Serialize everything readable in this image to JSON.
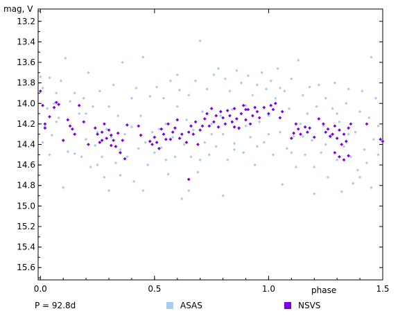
{
  "chart_data": {
    "type": "scatter",
    "ylabel": "mag, V",
    "xlabel": "phase",
    "period_label": "P = 92.8d",
    "y_inverted": true,
    "xlim": [
      -0.01,
      1.5
    ],
    "ylim": [
      15.72,
      13.08
    ],
    "x_ticks": [
      0.0,
      0.5,
      1.0,
      1.5
    ],
    "x_tick_labels": [
      "0.0",
      "0.5",
      "1.0",
      "1.5"
    ],
    "y_ticks": [
      13.2,
      13.4,
      13.6,
      13.8,
      14.0,
      14.2,
      14.4,
      14.6,
      14.8,
      15.0,
      15.2,
      15.4,
      15.6
    ],
    "y_tick_labels": [
      "13.2",
      "13.4",
      "13.6",
      "13.8",
      "14.0",
      "14.2",
      "14.4",
      "14.6",
      "14.8",
      "15.0",
      "15.2",
      "15.4",
      "15.6"
    ],
    "grid": false,
    "legend_position": "bottom",
    "series": [
      {
        "name": "ASAS",
        "color": "#a8cdf0",
        "points": [
          [
            0.0,
            13.74
          ],
          [
            0.01,
            13.85
          ],
          [
            0.02,
            14.22
          ],
          [
            0.03,
            14.05
          ],
          [
            0.04,
            13.75
          ],
          [
            0.05,
            14.31
          ],
          [
            0.06,
            14.0
          ],
          [
            0.07,
            13.9
          ],
          [
            0.08,
            14.14
          ],
          [
            0.09,
            13.78
          ],
          [
            0.1,
            14.36
          ],
          [
            0.11,
            13.56
          ],
          [
            0.12,
            14.47
          ],
          [
            0.13,
            13.98
          ],
          [
            0.14,
            14.25
          ],
          [
            0.15,
            14.49
          ],
          [
            0.17,
            14.1
          ],
          [
            0.18,
            14.52
          ],
          [
            0.19,
            13.95
          ],
          [
            0.2,
            14.35
          ],
          [
            0.21,
            13.7
          ],
          [
            0.22,
            14.62
          ],
          [
            0.23,
            14.03
          ],
          [
            0.24,
            14.41
          ],
          [
            0.25,
            14.28
          ],
          [
            0.26,
            13.88
          ],
          [
            0.27,
            14.52
          ],
          [
            0.28,
            14.72
          ],
          [
            0.29,
            14.25
          ],
          [
            0.3,
            14.03
          ],
          [
            0.31,
            14.33
          ],
          [
            0.32,
            13.82
          ],
          [
            0.33,
            14.58
          ],
          [
            0.34,
            14.12
          ],
          [
            0.35,
            14.45
          ],
          [
            0.36,
            13.6
          ],
          [
            0.37,
            14.3
          ],
          [
            0.38,
            14.52
          ],
          [
            0.4,
            14.23
          ],
          [
            0.41,
            14.76
          ],
          [
            0.42,
            13.85
          ],
          [
            0.43,
            14.44
          ],
          [
            0.44,
            14.12
          ],
          [
            0.45,
            13.55
          ],
          [
            0.46,
            14.38
          ],
          [
            0.47,
            14.6
          ],
          [
            0.48,
            13.93
          ],
          [
            0.49,
            14.28
          ],
          [
            0.5,
            14.48
          ],
          [
            0.51,
            13.84
          ],
          [
            0.52,
            14.25
          ],
          [
            0.53,
            14.43
          ],
          [
            0.54,
            13.95
          ],
          [
            0.55,
            14.2
          ],
          [
            0.56,
            14.69
          ],
          [
            0.57,
            13.78
          ],
          [
            0.58,
            14.33
          ],
          [
            0.59,
            14.52
          ],
          [
            0.6,
            14.03
          ],
          [
            0.61,
            13.87
          ],
          [
            0.62,
            14.93
          ],
          [
            0.63,
            14.4
          ],
          [
            0.64,
            14.16
          ],
          [
            0.65,
            13.92
          ],
          [
            0.66,
            14.52
          ],
          [
            0.67,
            14.26
          ],
          [
            0.68,
            13.78
          ],
          [
            0.69,
            14.67
          ],
          [
            0.7,
            13.39
          ],
          [
            0.71,
            14.08
          ],
          [
            0.72,
            14.38
          ],
          [
            0.73,
            13.86
          ],
          [
            0.74,
            14.5
          ],
          [
            0.75,
            14.2
          ],
          [
            0.76,
            13.72
          ],
          [
            0.77,
            14.42
          ],
          [
            0.78,
            13.66
          ],
          [
            0.79,
            14.12
          ],
          [
            0.8,
            14.3
          ],
          [
            0.81,
            13.76
          ],
          [
            0.82,
            14.55
          ],
          [
            0.83,
            13.88
          ],
          [
            0.84,
            14.06
          ],
          [
            0.85,
            14.39
          ],
          [
            0.86,
            13.68
          ],
          [
            0.87,
            14.25
          ],
          [
            0.88,
            13.8
          ],
          [
            0.89,
            14.48
          ],
          [
            0.9,
            14.02
          ],
          [
            0.91,
            13.73
          ],
          [
            0.92,
            14.33
          ],
          [
            0.93,
            13.92
          ],
          [
            0.94,
            14.6
          ],
          [
            0.95,
            13.82
          ],
          [
            0.96,
            14.18
          ],
          [
            0.97,
            13.7
          ],
          [
            0.98,
            14.38
          ],
          [
            0.99,
            13.86
          ],
          [
            1.0,
            14.12
          ],
          [
            1.01,
            13.78
          ],
          [
            1.02,
            14.5
          ],
          [
            1.03,
            13.95
          ],
          [
            1.04,
            13.66
          ],
          [
            1.05,
            14.28
          ],
          [
            1.06,
            14.79
          ],
          [
            1.07,
            13.88
          ],
          [
            1.08,
            14.44
          ],
          [
            1.09,
            14.05
          ],
          [
            1.1,
            13.76
          ],
          [
            1.11,
            14.32
          ],
          [
            1.12,
            14.62
          ],
          [
            1.13,
            13.58
          ],
          [
            1.14,
            14.2
          ],
          [
            1.15,
            13.92
          ],
          [
            1.16,
            14.5
          ],
          [
            1.17,
            14.1
          ],
          [
            1.18,
            13.84
          ],
          [
            1.19,
            14.36
          ],
          [
            1.2,
            14.62
          ],
          [
            1.21,
            14.03
          ],
          [
            1.22,
            13.82
          ],
          [
            1.23,
            14.48
          ],
          [
            1.24,
            14.22
          ],
          [
            1.25,
            13.95
          ],
          [
            1.26,
            14.72
          ],
          [
            1.27,
            14.33
          ],
          [
            1.28,
            14.05
          ],
          [
            1.29,
            13.8
          ],
          [
            1.3,
            14.55
          ],
          [
            1.31,
            14.18
          ],
          [
            1.32,
            14.86
          ],
          [
            1.33,
            14.42
          ],
          [
            1.34,
            14.0
          ],
          [
            1.35,
            13.86
          ],
          [
            1.36,
            14.52
          ],
          [
            1.37,
            14.78
          ],
          [
            1.38,
            14.28
          ],
          [
            1.39,
            14.65
          ],
          [
            1.4,
            14.08
          ],
          [
            1.41,
            13.88
          ],
          [
            1.42,
            14.45
          ],
          [
            1.43,
            14.58
          ],
          [
            1.44,
            14.14
          ],
          [
            1.45,
            13.55
          ],
          [
            1.46,
            14.35
          ],
          [
            1.47,
            13.95
          ],
          [
            1.48,
            14.5
          ],
          [
            0.01,
            14.38
          ],
          [
            0.04,
            14.5
          ],
          [
            0.07,
            14.18
          ],
          [
            0.1,
            14.82
          ],
          [
            0.15,
            13.9
          ],
          [
            0.2,
            14.1
          ],
          [
            0.25,
            14.6
          ],
          [
            0.3,
            14.85
          ],
          [
            0.35,
            14.7
          ],
          [
            0.4,
            13.95
          ],
          [
            0.45,
            14.85
          ],
          [
            0.55,
            14.55
          ],
          [
            0.6,
            13.72
          ],
          [
            0.65,
            14.85
          ],
          [
            0.7,
            14.55
          ],
          [
            0.75,
            14.3
          ],
          [
            0.8,
            14.9
          ],
          [
            0.85,
            14.45
          ],
          [
            0.9,
            14.22
          ],
          [
            0.95,
            14.42
          ],
          [
            1.0,
            14.3
          ],
          [
            1.05,
            13.85
          ],
          [
            1.1,
            14.48
          ],
          [
            1.15,
            14.32
          ],
          [
            1.2,
            14.88
          ],
          [
            1.25,
            14.4
          ],
          [
            1.3,
            14.1
          ],
          [
            1.35,
            14.3
          ],
          [
            1.4,
            14.72
          ],
          [
            1.45,
            14.82
          ],
          [
            1.48,
            14.22
          ]
        ]
      },
      {
        "name": "NSVS",
        "color": "#7a00e6",
        "points": [
          [
            0.0,
            13.88
          ],
          [
            0.01,
            14.02
          ],
          [
            0.02,
            14.2
          ],
          [
            0.04,
            14.13
          ],
          [
            0.06,
            14.04
          ],
          [
            0.07,
            13.99
          ],
          [
            0.08,
            14.01
          ],
          [
            0.1,
            14.36
          ],
          [
            0.12,
            14.16
          ],
          [
            0.13,
            14.22
          ],
          [
            0.15,
            14.3
          ],
          [
            0.17,
            14.02
          ],
          [
            0.19,
            14.18
          ],
          [
            0.21,
            14.4
          ],
          [
            0.24,
            14.24
          ],
          [
            0.25,
            14.3
          ],
          [
            0.26,
            14.38
          ],
          [
            0.27,
            14.28
          ],
          [
            0.28,
            14.2
          ],
          [
            0.29,
            14.34
          ],
          [
            0.3,
            14.26
          ],
          [
            0.31,
            14.31
          ],
          [
            0.32,
            14.36
          ],
          [
            0.33,
            14.42
          ],
          [
            0.34,
            14.29
          ],
          [
            0.35,
            14.48
          ],
          [
            0.36,
            14.36
          ],
          [
            0.37,
            14.54
          ],
          [
            0.38,
            14.21
          ],
          [
            0.43,
            14.22
          ],
          [
            0.44,
            14.31
          ],
          [
            0.48,
            14.37
          ],
          [
            0.49,
            14.4
          ],
          [
            0.5,
            14.33
          ],
          [
            0.51,
            14.38
          ],
          [
            0.52,
            14.44
          ],
          [
            0.53,
            14.25
          ],
          [
            0.54,
            14.3
          ],
          [
            0.56,
            14.2
          ],
          [
            0.57,
            14.35
          ],
          [
            0.58,
            14.28
          ],
          [
            0.59,
            14.24
          ],
          [
            0.6,
            14.16
          ],
          [
            0.62,
            14.3
          ],
          [
            0.64,
            14.38
          ],
          [
            0.65,
            14.28
          ],
          [
            0.66,
            14.22
          ],
          [
            0.67,
            14.3
          ],
          [
            0.68,
            14.18
          ],
          [
            0.69,
            14.4
          ],
          [
            0.7,
            14.26
          ],
          [
            0.72,
            14.15
          ],
          [
            0.73,
            14.1
          ],
          [
            0.74,
            14.22
          ],
          [
            0.75,
            14.05
          ],
          [
            0.76,
            14.18
          ],
          [
            0.77,
            14.12
          ],
          [
            0.78,
            14.23
          ],
          [
            0.79,
            14.08
          ],
          [
            0.8,
            14.14
          ],
          [
            0.81,
            14.2
          ],
          [
            0.82,
            14.07
          ],
          [
            0.83,
            14.12
          ],
          [
            0.84,
            14.18
          ],
          [
            0.85,
            14.05
          ],
          [
            0.86,
            14.15
          ],
          [
            0.87,
            14.24
          ],
          [
            0.88,
            14.1
          ],
          [
            0.89,
            14.02
          ],
          [
            0.9,
            14.16
          ],
          [
            0.91,
            14.06
          ],
          [
            0.92,
            14.2
          ],
          [
            0.93,
            14.12
          ],
          [
            0.95,
            14.08
          ],
          [
            0.96,
            14.14
          ],
          [
            0.98,
            14.04
          ],
          [
            1.0,
            14.1
          ],
          [
            1.01,
            14.02
          ],
          [
            1.03,
            14.0
          ],
          [
            1.05,
            14.14
          ],
          [
            1.06,
            14.08
          ],
          [
            1.1,
            14.34
          ],
          [
            1.11,
            14.29
          ],
          [
            1.12,
            14.2
          ],
          [
            1.13,
            14.25
          ],
          [
            1.14,
            14.3
          ],
          [
            1.16,
            14.23
          ],
          [
            1.18,
            14.24
          ],
          [
            1.2,
            14.33
          ],
          [
            1.22,
            14.15
          ],
          [
            1.24,
            14.2
          ],
          [
            1.25,
            14.28
          ],
          [
            1.26,
            14.25
          ],
          [
            1.27,
            14.32
          ],
          [
            1.28,
            14.3
          ],
          [
            1.29,
            14.22
          ],
          [
            1.3,
            14.34
          ],
          [
            1.31,
            14.26
          ],
          [
            1.32,
            14.4
          ],
          [
            1.33,
            14.3
          ],
          [
            1.34,
            14.37
          ],
          [
            1.35,
            14.24
          ],
          [
            1.36,
            14.2
          ],
          [
            1.43,
            14.2
          ],
          [
            1.49,
            14.35
          ],
          [
            1.5,
            14.37
          ],
          [
            0.02,
            14.24
          ],
          [
            0.14,
            14.25
          ],
          [
            0.27,
            14.36
          ],
          [
            0.31,
            14.41
          ],
          [
            0.55,
            14.35
          ],
          [
            0.61,
            14.34
          ],
          [
            0.71,
            14.22
          ],
          [
            0.85,
            14.23
          ],
          [
            1.02,
            14.06
          ],
          [
            1.17,
            14.28
          ],
          [
            1.29,
            14.48
          ],
          [
            1.31,
            14.52
          ],
          [
            1.33,
            14.55
          ],
          [
            1.35,
            14.51
          ],
          [
            0.65,
            14.74
          ],
          [
            0.9,
            14.06
          ],
          [
            0.94,
            14.04
          ]
        ]
      }
    ]
  }
}
